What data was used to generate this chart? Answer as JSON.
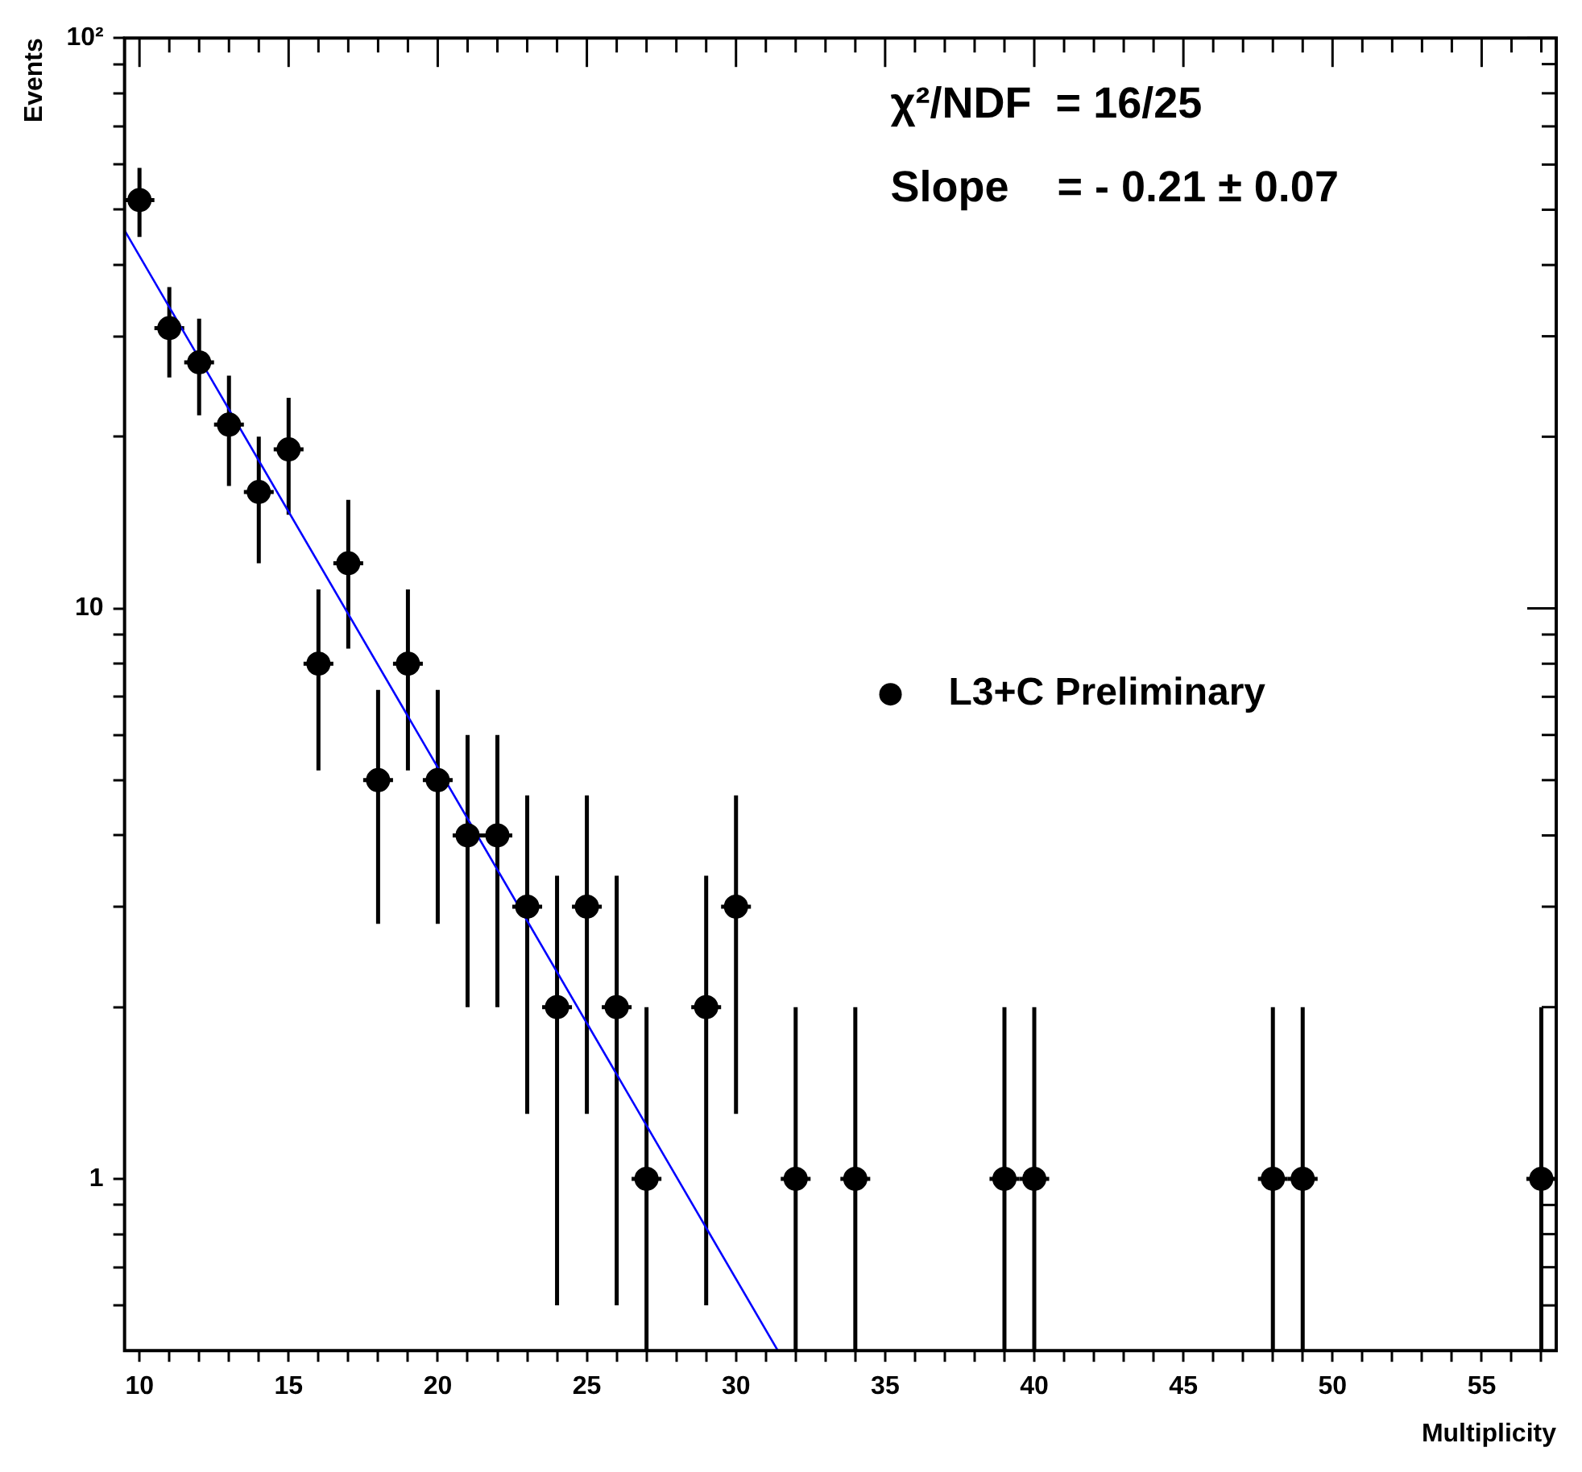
{
  "chart_data": {
    "type": "scatter",
    "xlabel": "Multiplicity",
    "ylabel": "Events",
    "xlim": [
      9.5,
      57.5
    ],
    "ylim": [
      0.5,
      100
    ],
    "xticks": [
      10,
      {
        "value": 11,
        "label": null
      },
      {
        "value": 12,
        "label": null
      },
      {
        "value": 13,
        "label": null
      },
      {
        "value": 14,
        "label": null
      },
      15,
      {
        "value": 16,
        "label": null
      },
      {
        "value": 17,
        "label": null
      },
      {
        "value": 18,
        "label": null
      },
      {
        "value": 19,
        "label": null
      },
      20,
      {
        "value": 21,
        "label": null
      },
      {
        "value": 22,
        "label": null
      },
      {
        "value": 23,
        "label": null
      },
      {
        "value": 24,
        "label": null
      },
      25,
      {
        "value": 26,
        "label": null
      },
      {
        "value": 27,
        "label": null
      },
      {
        "value": 28,
        "label": null
      },
      {
        "value": 29,
        "label": null
      },
      30,
      {
        "value": 31,
        "label": null
      },
      {
        "value": 32,
        "label": null
      },
      {
        "value": 33,
        "label": null
      },
      {
        "value": 34,
        "label": null
      },
      35,
      {
        "value": 36,
        "label": null
      },
      {
        "value": 37,
        "label": null
      },
      {
        "value": 38,
        "label": null
      },
      {
        "value": 39,
        "label": null
      },
      40,
      {
        "value": 41,
        "label": null
      },
      {
        "value": 42,
        "label": null
      },
      {
        "value": 43,
        "label": null
      },
      {
        "value": 44,
        "label": null
      },
      45,
      {
        "value": 46,
        "label": null
      },
      {
        "value": 47,
        "label": null
      },
      {
        "value": 48,
        "label": null
      },
      {
        "value": 49,
        "label": null
      },
      50,
      {
        "value": 51,
        "label": null
      },
      {
        "value": 52,
        "label": null
      },
      {
        "value": 53,
        "label": null
      },
      {
        "value": 54,
        "label": null
      },
      55,
      {
        "value": 56,
        "label": null
      },
      {
        "value": 57,
        "label": null
      }
    ],
    "yticks": [
      {
        "value": 0.6,
        "label": null
      },
      {
        "value": 0.7,
        "label": null
      },
      {
        "value": 0.8,
        "label": null
      },
      {
        "value": 0.9,
        "label": null
      },
      1,
      {
        "value": 2,
        "label": null
      },
      {
        "value": 3,
        "label": null
      },
      {
        "value": 4,
        "label": null
      },
      {
        "value": 5,
        "label": null
      },
      {
        "value": 6,
        "label": null
      },
      {
        "value": 7,
        "label": null
      },
      {
        "value": 8,
        "label": null
      },
      {
        "value": 9,
        "label": null
      },
      10,
      {
        "value": 20,
        "label": null
      },
      {
        "value": 30,
        "label": null
      },
      {
        "value": 40,
        "label": null
      },
      {
        "value": 50,
        "label": null
      },
      {
        "value": 60,
        "label": null
      },
      {
        "value": 70,
        "label": null
      },
      {
        "value": 80,
        "label": null
      },
      {
        "value": 90,
        "label": null
      },
      {
        "value": 100,
        "label": "10²"
      }
    ],
    "log": "y",
    "grid": false,
    "legend": "right",
    "annotations": [
      "χ²/NDF  = 16/25",
      "Slope    = - 0.21 ± 0.07"
    ],
    "series": [
      {
        "name": "L3+C Preliminary",
        "color": "#000000",
        "marker": "circle",
        "x": [
          10,
          11,
          12,
          13,
          14,
          15,
          16,
          17,
          18,
          19,
          20,
          21,
          22,
          23,
          24,
          25,
          26,
          27,
          29,
          30,
          32,
          34,
          39,
          40,
          48,
          49,
          57
        ],
        "values": [
          52,
          31,
          27,
          21,
          16,
          19,
          8,
          12,
          5,
          8,
          5,
          4,
          4,
          3,
          2,
          3,
          2,
          1,
          2,
          3,
          1,
          1,
          1,
          1,
          1,
          1,
          1
        ],
        "errors": [
          7.2,
          5.6,
          5.2,
          4.6,
          4,
          4.4,
          2.8,
          3.5,
          2.2,
          2.8,
          2.2,
          2,
          2,
          1.7,
          1.4,
          1.7,
          1.4,
          [
            0.5,
            2
          ],
          1.4,
          1.7,
          [
            0.5,
            2
          ],
          [
            0.5,
            2
          ],
          [
            0.5,
            2
          ],
          [
            0.5,
            2
          ],
          [
            0.5,
            2
          ],
          [
            0.5,
            2
          ],
          [
            0.5,
            2
          ]
        ],
        "xerrors": [
          0.5,
          0.5,
          0.5,
          0.5,
          0.5,
          0.5,
          0.5,
          0.5,
          0.5,
          0.5,
          0.5,
          0.5,
          0.5,
          0.5,
          0.5,
          0.5,
          0.5,
          0.5,
          0.5,
          0.5,
          0.5,
          0.5,
          0.5,
          0.5,
          0.5,
          0.5,
          0.5
        ]
      },
      {
        "type": "line",
        "color": "#0000ff",
        "x": [
          9.5,
          31.4
        ],
        "values": [
          46,
          0.5
        ],
        "line_style": "solid",
        "marker": "none"
      }
    ]
  }
}
